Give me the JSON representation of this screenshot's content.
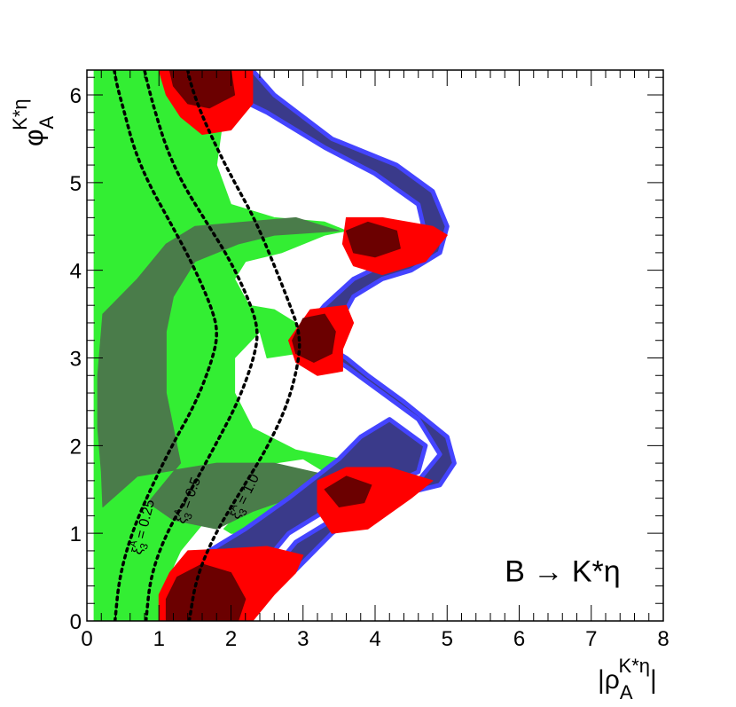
{
  "chart_data": {
    "type": "area",
    "title": "",
    "xlabel": {
      "base": "|ρ",
      "sub": "A",
      "sup": "K*η",
      "close": "|"
    },
    "ylabel": {
      "base": "φ",
      "sub": "A",
      "sup": "K*η"
    },
    "xlim": [
      0,
      8
    ],
    "ylim": [
      0,
      6.2832
    ],
    "xticks": [
      0,
      1,
      2,
      3,
      4,
      5,
      6,
      7,
      8
    ],
    "yticks": [
      0,
      1,
      2,
      3,
      4,
      5,
      6
    ],
    "grid": false,
    "legend": "none",
    "process_label": "B → K*η",
    "colors": {
      "light_green": "#33ee33",
      "dark_green": "#4a7c4a",
      "blue": "#4444ff",
      "navy": "#3a3a8a",
      "red": "#ff0000",
      "dark_red": "#6b0000",
      "dotted": "#000000"
    },
    "regions": [
      {
        "name": "light-green-region",
        "color": "#33ee33",
        "points": [
          [
            0.1,
            0
          ],
          [
            1.0,
            0
          ],
          [
            1.05,
            0.35
          ],
          [
            1.3,
            0.8
          ],
          [
            1.7,
            1.2
          ],
          [
            2.2,
            1.55
          ],
          [
            2.6,
            1.8
          ],
          [
            3.0,
            1.85
          ],
          [
            3.3,
            1.7
          ],
          [
            3.5,
            1.6
          ],
          [
            3.0,
            1.55
          ],
          [
            2.2,
            1.3
          ],
          [
            1.9,
            1.05
          ],
          [
            2.0,
            1.0
          ],
          [
            2.7,
            1.0
          ],
          [
            3.5,
            1.3
          ],
          [
            3.8,
            1.55
          ],
          [
            3.9,
            1.75
          ],
          [
            3.5,
            1.85
          ],
          [
            2.9,
            1.95
          ],
          [
            2.3,
            2.2
          ],
          [
            2.05,
            2.6
          ],
          [
            2.05,
            3.0
          ],
          [
            2.4,
            3.3
          ],
          [
            2.5,
            3.0
          ],
          [
            2.9,
            3.05
          ],
          [
            2.9,
            3.4
          ],
          [
            2.6,
            3.55
          ],
          [
            2.25,
            3.6
          ],
          [
            2.05,
            3.9
          ],
          [
            2.2,
            4.1
          ],
          [
            2.7,
            4.2
          ],
          [
            3.3,
            4.4
          ],
          [
            3.6,
            4.45
          ],
          [
            3.3,
            4.55
          ],
          [
            2.6,
            4.6
          ],
          [
            2.0,
            4.75
          ],
          [
            1.8,
            5.2
          ],
          [
            1.9,
            5.8
          ],
          [
            2.1,
            6.28
          ],
          [
            0.1,
            6.28
          ]
        ]
      },
      {
        "name": "dark-green-region",
        "color": "#4a7c4a",
        "points": [
          [
            0.22,
            1.3
          ],
          [
            0.7,
            1.65
          ],
          [
            1.8,
            1.8
          ],
          [
            2.6,
            1.8
          ],
          [
            3.4,
            1.65
          ],
          [
            3.6,
            1.6
          ],
          [
            3.1,
            1.48
          ],
          [
            2.3,
            1.25
          ],
          [
            1.8,
            1.05
          ],
          [
            1.2,
            1.15
          ],
          [
            0.85,
            1.35
          ],
          [
            1.3,
            1.8
          ],
          [
            1.2,
            2.2
          ],
          [
            1.1,
            2.6
          ],
          [
            1.1,
            3.3
          ],
          [
            1.2,
            3.7
          ],
          [
            1.5,
            4.1
          ],
          [
            2.1,
            4.3
          ],
          [
            2.6,
            4.4
          ],
          [
            3.5,
            4.45
          ],
          [
            2.9,
            4.6
          ],
          [
            2.2,
            4.55
          ],
          [
            1.5,
            4.5
          ],
          [
            1.1,
            4.3
          ],
          [
            0.7,
            3.9
          ],
          [
            0.22,
            3.5
          ],
          [
            0.15,
            2.8
          ],
          [
            0.15,
            2.2
          ],
          [
            0.2,
            1.7
          ]
        ]
      },
      {
        "name": "navy-band-upper",
        "color": "#3a3a8a",
        "points": [
          [
            1.2,
            6.28
          ],
          [
            2.3,
            6.28
          ],
          [
            2.6,
            6.0
          ],
          [
            3.4,
            5.5
          ],
          [
            4.3,
            5.2
          ],
          [
            4.8,
            4.9
          ],
          [
            5.0,
            4.5
          ],
          [
            4.9,
            4.2
          ],
          [
            4.5,
            4.0
          ],
          [
            4.1,
            3.9
          ],
          [
            3.7,
            3.7
          ],
          [
            3.5,
            3.4
          ],
          [
            3.4,
            3.1
          ],
          [
            3.6,
            3.0
          ],
          [
            3.9,
            2.8
          ],
          [
            4.4,
            2.5
          ],
          [
            5.0,
            2.1
          ],
          [
            5.1,
            1.8
          ],
          [
            4.9,
            1.55
          ],
          [
            4.4,
            1.45
          ],
          [
            3.8,
            1.3
          ],
          [
            3.3,
            1.1
          ],
          [
            2.9,
            0.9
          ],
          [
            2.6,
            0.6
          ],
          [
            2.3,
            0.4
          ],
          [
            1.4,
            0.4
          ],
          [
            1.6,
            0.75
          ],
          [
            2.2,
            1.05
          ],
          [
            2.8,
            1.4
          ],
          [
            3.5,
            1.85
          ],
          [
            3.8,
            2.1
          ],
          [
            4.2,
            2.3
          ],
          [
            4.7,
            2.0
          ],
          [
            4.6,
            1.7
          ],
          [
            4.2,
            1.55
          ],
          [
            3.7,
            1.45
          ],
          [
            3.2,
            1.2
          ],
          [
            2.8,
            1.0
          ],
          [
            2.5,
            0.7
          ],
          [
            2.8,
            0.5
          ],
          [
            3.4,
            1.0
          ],
          [
            3.9,
            1.3
          ],
          [
            4.6,
            1.6
          ],
          [
            4.9,
            1.9
          ],
          [
            4.6,
            2.3
          ],
          [
            4.1,
            2.6
          ],
          [
            3.6,
            2.9
          ],
          [
            3.2,
            3.1
          ],
          [
            3.0,
            3.3
          ],
          [
            3.3,
            3.6
          ],
          [
            3.7,
            3.9
          ],
          [
            4.2,
            4.1
          ],
          [
            4.7,
            4.4
          ],
          [
            4.6,
            4.75
          ],
          [
            4.0,
            5.1
          ],
          [
            3.3,
            5.4
          ],
          [
            2.5,
            5.8
          ],
          [
            2.0,
            6.0
          ],
          [
            1.6,
            6.2
          ]
        ]
      },
      {
        "name": "red-blob-top",
        "color": "#ff0000",
        "points": [
          [
            1.0,
            6.28
          ],
          [
            2.3,
            6.28
          ],
          [
            2.3,
            5.9
          ],
          [
            2.0,
            5.6
          ],
          [
            1.6,
            5.55
          ],
          [
            1.3,
            5.75
          ],
          [
            1.1,
            6.0
          ]
        ]
      },
      {
        "name": "red-blob-upper-mid",
        "color": "#ff0000",
        "points": [
          [
            3.6,
            4.6
          ],
          [
            4.1,
            4.6
          ],
          [
            4.8,
            4.5
          ],
          [
            5.0,
            4.4
          ],
          [
            4.7,
            4.1
          ],
          [
            4.1,
            3.95
          ],
          [
            3.7,
            4.05
          ],
          [
            3.55,
            4.3
          ]
        ]
      },
      {
        "name": "red-blob-center",
        "color": "#ff0000",
        "points": [
          [
            2.8,
            3.2
          ],
          [
            3.1,
            3.55
          ],
          [
            3.6,
            3.6
          ],
          [
            3.7,
            3.4
          ],
          [
            3.55,
            3.1
          ],
          [
            3.55,
            2.85
          ],
          [
            3.2,
            2.8
          ],
          [
            2.9,
            2.95
          ]
        ]
      },
      {
        "name": "red-blob-lower-mid",
        "color": "#ff0000",
        "points": [
          [
            3.2,
            1.6
          ],
          [
            3.6,
            1.75
          ],
          [
            4.2,
            1.75
          ],
          [
            4.8,
            1.6
          ],
          [
            4.5,
            1.4
          ],
          [
            3.9,
            1.05
          ],
          [
            3.4,
            1.0
          ],
          [
            3.2,
            1.25
          ]
        ]
      },
      {
        "name": "red-blob-bottom",
        "color": "#ff0000",
        "points": [
          [
            1.0,
            0
          ],
          [
            2.3,
            0
          ],
          [
            2.6,
            0.3
          ],
          [
            2.9,
            0.55
          ],
          [
            3.0,
            0.75
          ],
          [
            2.5,
            0.85
          ],
          [
            1.9,
            0.82
          ],
          [
            1.4,
            0.8
          ],
          [
            1.15,
            0.55
          ],
          [
            1.0,
            0.3
          ]
        ]
      },
      {
        "name": "dark-red-top",
        "color": "#6b0000",
        "points": [
          [
            1.15,
            6.28
          ],
          [
            2.0,
            6.28
          ],
          [
            2.05,
            6.0
          ],
          [
            1.7,
            5.85
          ],
          [
            1.4,
            5.9
          ],
          [
            1.2,
            6.1
          ]
        ]
      },
      {
        "name": "dark-red-upper-mid",
        "color": "#6b0000",
        "points": [
          [
            3.6,
            4.45
          ],
          [
            3.9,
            4.55
          ],
          [
            4.3,
            4.45
          ],
          [
            4.35,
            4.25
          ],
          [
            4.0,
            4.15
          ],
          [
            3.7,
            4.2
          ]
        ]
      },
      {
        "name": "dark-red-center",
        "color": "#6b0000",
        "points": [
          [
            2.85,
            3.2
          ],
          [
            3.0,
            3.45
          ],
          [
            3.3,
            3.5
          ],
          [
            3.45,
            3.3
          ],
          [
            3.4,
            3.05
          ],
          [
            3.15,
            2.95
          ],
          [
            2.9,
            3.05
          ]
        ]
      },
      {
        "name": "dark-red-lower-mid",
        "color": "#6b0000",
        "points": [
          [
            3.3,
            1.5
          ],
          [
            3.6,
            1.65
          ],
          [
            3.95,
            1.55
          ],
          [
            3.85,
            1.35
          ],
          [
            3.5,
            1.3
          ]
        ]
      },
      {
        "name": "dark-red-bottom",
        "color": "#6b0000",
        "points": [
          [
            1.1,
            0
          ],
          [
            2.1,
            0
          ],
          [
            2.2,
            0.25
          ],
          [
            2.0,
            0.55
          ],
          [
            1.6,
            0.65
          ],
          [
            1.25,
            0.5
          ],
          [
            1.1,
            0.25
          ]
        ]
      }
    ],
    "series": [
      {
        "name": "ξ₃ᴬ = 0.25",
        "label_text": "ξ",
        "label_super": "A",
        "label_sub": "3",
        "label_value": "= 0.25",
        "x": [
          0.39,
          0.45,
          0.62,
          0.88,
          1.18,
          1.52,
          1.75,
          1.82,
          1.72,
          1.45,
          1.12,
          0.85,
          0.65,
          0.52,
          0.42,
          0.38
        ],
        "y": [
          0,
          0.5,
          1.0,
          1.5,
          2.0,
          2.5,
          3.0,
          3.3,
          3.6,
          4.1,
          4.6,
          5.0,
          5.4,
          5.8,
          6.1,
          6.28
        ]
      },
      {
        "name": "ξ₃ᴬ = 0.5",
        "label_text": "ξ",
        "label_super": "A",
        "label_sub": "3",
        "label_value": "= 0.5",
        "x": [
          0.82,
          0.88,
          1.1,
          1.45,
          1.78,
          2.1,
          2.32,
          2.38,
          2.28,
          2.0,
          1.62,
          1.32,
          1.1,
          0.95,
          0.85,
          0.8
        ],
        "y": [
          0,
          0.5,
          1.0,
          1.5,
          2.0,
          2.5,
          3.0,
          3.3,
          3.6,
          4.1,
          4.6,
          5.0,
          5.4,
          5.8,
          6.1,
          6.28
        ]
      },
      {
        "name": "ξ₃ᴬ = 1.0",
        "label_text": "ξ",
        "label_super": "A",
        "label_sub": "3",
        "label_value": "= 1.0",
        "x": [
          1.42,
          1.52,
          1.78,
          2.15,
          2.52,
          2.8,
          2.95,
          2.95,
          2.82,
          2.58,
          2.32,
          2.05,
          1.8,
          1.58,
          1.45,
          1.4
        ],
        "y": [
          0,
          0.5,
          1.0,
          1.5,
          2.0,
          2.5,
          3.0,
          3.3,
          3.6,
          4.1,
          4.6,
          5.0,
          5.4,
          5.8,
          6.1,
          6.28
        ]
      }
    ]
  }
}
